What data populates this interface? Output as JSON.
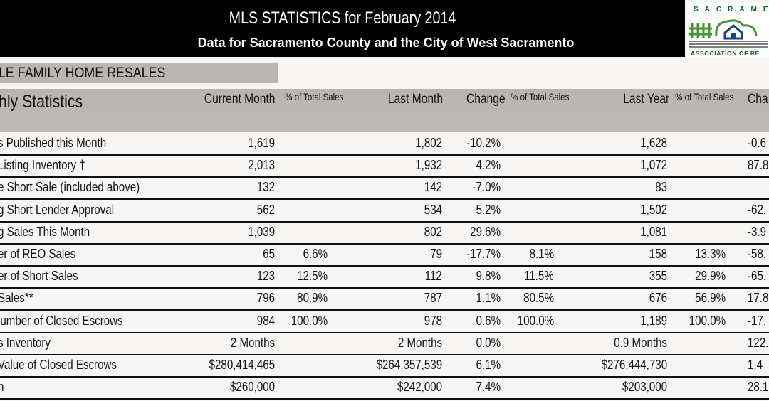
{
  "header": {
    "title": "MLS STATISTICS for February 2014",
    "subtitle": "Data for Sacramento County and the City of West Sacramento"
  },
  "logo": {
    "top_text": "SACRAMENTO",
    "bottom_text": "ASSOCIATION OF RE",
    "color": "#0f5c2e"
  },
  "section_title": "LE FAMILY HOME RESALES",
  "columns": {
    "label": "hly Statistics",
    "current": "Current Month",
    "pct1": "% of  Total Sales",
    "last_month": "Last Month",
    "change1": "Change",
    "pct2": "% of  Total Sales",
    "last_year": "Last Year",
    "pct3": "% of  Total Sales",
    "change2": "Cha"
  },
  "rows": [
    {
      "label": "s Published this Month",
      "current": "1,619",
      "pct1": "",
      "last_month": "1,802",
      "change1": "-10.2%",
      "pct2": "",
      "last_year": "1,628",
      "pct3": "",
      "change2": "-0.6"
    },
    {
      "label": "Listing Inventory †",
      "current": "2,013",
      "pct1": "",
      "last_month": "1,932",
      "change1": "4.2%",
      "pct2": "",
      "last_year": "1,072",
      "pct3": "",
      "change2": "87.8"
    },
    {
      "label": "e Short Sale (included above)",
      "current": "132",
      "pct1": "",
      "last_month": "142",
      "change1": "-7.0%",
      "pct2": "",
      "last_year": "83",
      "pct3": "",
      "change2": ""
    },
    {
      "label": "g Short Lender Approval",
      "current": "562",
      "pct1": "",
      "last_month": "534",
      "change1": "5.2%",
      "pct2": "",
      "last_year": "1,502",
      "pct3": "",
      "change2": "-62."
    },
    {
      "label": "g Sales This Month",
      "current": "1,039",
      "pct1": "",
      "last_month": "802",
      "change1": "29.6%",
      "pct2": "",
      "last_year": "1,081",
      "pct3": "",
      "change2": "-3.9"
    },
    {
      "label": "er of REO Sales",
      "current": "65",
      "pct1": "6.6%",
      "last_month": "79",
      "change1": "-17.7%",
      "pct2": "8.1%",
      "last_year": "158",
      "pct3": "13.3%",
      "change2": "-58."
    },
    {
      "label": "er of Short Sales",
      "current": "123",
      "pct1": "12.5%",
      "last_month": "112",
      "change1": "9.8%",
      "pct2": "11.5%",
      "last_year": "355",
      "pct3": "29.9%",
      "change2": "-65."
    },
    {
      "label": "Sales**",
      "current": "796",
      "pct1": "80.9%",
      "last_month": "787",
      "change1": "1.1%",
      "pct2": "80.5%",
      "last_year": "676",
      "pct3": "56.9%",
      "change2": "17.8"
    },
    {
      "label": "lumber of Closed Escrows",
      "current": "984",
      "pct1": "100.0%",
      "last_month": "978",
      "change1": "0.6%",
      "pct2": "100.0%",
      "last_year": "1,189",
      "pct3": "100.0%",
      "change2": "-17."
    },
    {
      "label": "s Inventory",
      "current": "2 Months",
      "pct1": "",
      "last_month": "2 Months",
      "change1": "0.0%",
      "pct2": "",
      "last_year": "0.9 Months",
      "pct3": "",
      "change2": "122."
    },
    {
      "label": "Value of Closed Escrows",
      "current": "$280,414,465",
      "pct1": "",
      "last_month": "$264,357,539",
      "change1": "6.1%",
      "pct2": "",
      "last_year": "$276,444,730",
      "pct3": "",
      "change2": "1.4"
    },
    {
      "label": "n",
      "current": "$260,000",
      "pct1": "",
      "last_month": "$242,000",
      "change1": "7.4%",
      "pct2": "",
      "last_year": "$203,000",
      "pct3": "",
      "change2": "28.1"
    }
  ]
}
